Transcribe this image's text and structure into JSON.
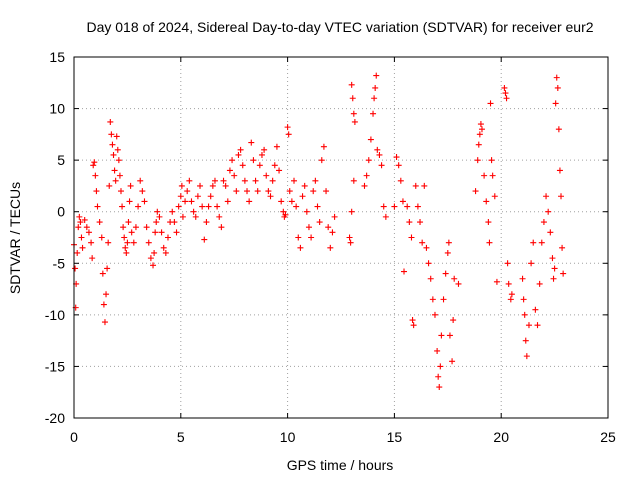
{
  "chart_data": {
    "type": "scatter",
    "title": "Day 018 of 2024, Sidereal Day-to-day VTEC variation (SDTVAR) for receiver eur2",
    "xlabel": "GPS time / hours",
    "ylabel": "SDTVAR / TECUs",
    "xlim": [
      0,
      25
    ],
    "ylim": [
      -20,
      15
    ],
    "xticks": [
      0,
      5,
      10,
      15,
      20,
      25
    ],
    "yticks": [
      -20,
      -15,
      -10,
      -5,
      0,
      5,
      10,
      15
    ],
    "xtick_labels": [
      "0",
      "5",
      "10",
      "15",
      "20",
      "25"
    ],
    "ytick_labels": [
      "-20",
      "-15",
      "-10",
      "-5",
      "0",
      "5",
      "10",
      "15"
    ],
    "grid": true,
    "marker": "+",
    "color": "#ff0000",
    "series": [
      {
        "name": "SDTVAR",
        "points": [
          [
            0.0,
            -3.2
          ],
          [
            0.05,
            -5.5
          ],
          [
            0.08,
            -9.3
          ],
          [
            0.1,
            -7.0
          ],
          [
            0.15,
            -4.0
          ],
          [
            0.2,
            -1.5
          ],
          [
            0.25,
            -0.5
          ],
          [
            0.3,
            -1.0
          ],
          [
            0.35,
            -2.5
          ],
          [
            0.4,
            -3.5
          ],
          [
            0.5,
            -0.8
          ],
          [
            0.6,
            -1.5
          ],
          [
            0.7,
            -2.0
          ],
          [
            0.8,
            -3.0
          ],
          [
            0.85,
            -4.5
          ],
          [
            0.9,
            4.5
          ],
          [
            0.95,
            4.8
          ],
          [
            1.0,
            3.5
          ],
          [
            1.05,
            2.0
          ],
          [
            1.1,
            0.5
          ],
          [
            1.2,
            -1.0
          ],
          [
            1.3,
            -2.5
          ],
          [
            1.35,
            -6.0
          ],
          [
            1.4,
            -9.0
          ],
          [
            1.45,
            -10.7
          ],
          [
            1.5,
            -8.0
          ],
          [
            1.55,
            -5.5
          ],
          [
            1.6,
            -3.0
          ],
          [
            1.65,
            2.5
          ],
          [
            1.7,
            8.7
          ],
          [
            1.75,
            7.5
          ],
          [
            1.8,
            6.5
          ],
          [
            1.85,
            5.5
          ],
          [
            1.9,
            4.0
          ],
          [
            1.95,
            3.0
          ],
          [
            2.0,
            7.3
          ],
          [
            2.05,
            6.0
          ],
          [
            2.1,
            5.0
          ],
          [
            2.15,
            3.5
          ],
          [
            2.2,
            2.0
          ],
          [
            2.25,
            0.5
          ],
          [
            2.3,
            -1.5
          ],
          [
            2.35,
            -2.5
          ],
          [
            2.4,
            -3.5
          ],
          [
            2.45,
            -4.0
          ],
          [
            2.5,
            -3.0
          ],
          [
            2.55,
            -1.0
          ],
          [
            2.6,
            1.0
          ],
          [
            2.65,
            2.5
          ],
          [
            2.7,
            -2.0
          ],
          [
            2.8,
            -3.0
          ],
          [
            2.9,
            -1.5
          ],
          [
            3.0,
            0.5
          ],
          [
            3.1,
            3.0
          ],
          [
            3.2,
            2.0
          ],
          [
            3.3,
            1.0
          ],
          [
            3.4,
            -1.5
          ],
          [
            3.5,
            -3.0
          ],
          [
            3.6,
            -4.5
          ],
          [
            3.7,
            -5.2
          ],
          [
            3.75,
            -4.0
          ],
          [
            3.8,
            -2.0
          ],
          [
            3.85,
            -1.0
          ],
          [
            3.9,
            0.0
          ],
          [
            4.0,
            -0.5
          ],
          [
            4.1,
            -2.0
          ],
          [
            4.2,
            -3.5
          ],
          [
            4.3,
            -4.0
          ],
          [
            4.4,
            -2.5
          ],
          [
            4.5,
            -1.0
          ],
          [
            4.6,
            0.0
          ],
          [
            4.7,
            -1.0
          ],
          [
            4.8,
            -2.0
          ],
          [
            4.9,
            0.5
          ],
          [
            5.0,
            1.5
          ],
          [
            5.05,
            2.5
          ],
          [
            5.1,
            -0.5
          ],
          [
            5.2,
            1.0
          ],
          [
            5.3,
            2.0
          ],
          [
            5.4,
            3.0
          ],
          [
            5.5,
            1.0
          ],
          [
            5.6,
            0.0
          ],
          [
            5.7,
            -0.5
          ],
          [
            5.8,
            1.5
          ],
          [
            5.9,
            2.5
          ],
          [
            6.0,
            0.5
          ],
          [
            6.1,
            -2.7
          ],
          [
            6.2,
            -1.0
          ],
          [
            6.3,
            0.5
          ],
          [
            6.4,
            1.5
          ],
          [
            6.5,
            2.5
          ],
          [
            6.6,
            3.0
          ],
          [
            6.7,
            0.5
          ],
          [
            6.8,
            -0.5
          ],
          [
            6.9,
            -1.5
          ],
          [
            7.0,
            3.0
          ],
          [
            7.1,
            2.5
          ],
          [
            7.2,
            1.0
          ],
          [
            7.3,
            4.0
          ],
          [
            7.4,
            5.0
          ],
          [
            7.5,
            3.5
          ],
          [
            7.6,
            2.0
          ],
          [
            7.7,
            5.5
          ],
          [
            7.8,
            6.0
          ],
          [
            7.9,
            4.5
          ],
          [
            8.0,
            3.0
          ],
          [
            8.1,
            2.0
          ],
          [
            8.2,
            1.0
          ],
          [
            8.3,
            6.7
          ],
          [
            8.4,
            5.0
          ],
          [
            8.5,
            3.0
          ],
          [
            8.6,
            2.0
          ],
          [
            8.7,
            4.5
          ],
          [
            8.8,
            5.5
          ],
          [
            8.9,
            6.0
          ],
          [
            9.0,
            3.5
          ],
          [
            9.1,
            2.0
          ],
          [
            9.2,
            1.5
          ],
          [
            9.3,
            3.0
          ],
          [
            9.4,
            4.5
          ],
          [
            9.5,
            6.3
          ],
          [
            9.6,
            4.0
          ],
          [
            9.7,
            1.0
          ],
          [
            9.8,
            0.0
          ],
          [
            9.85,
            -0.5
          ],
          [
            9.9,
            -0.3
          ],
          [
            10.0,
            8.2
          ],
          [
            10.05,
            7.5
          ],
          [
            10.1,
            2.0
          ],
          [
            10.2,
            1.0
          ],
          [
            10.3,
            3.0
          ],
          [
            10.4,
            0.5
          ],
          [
            10.5,
            -2.5
          ],
          [
            10.6,
            -3.5
          ],
          [
            10.7,
            1.5
          ],
          [
            10.8,
            2.5
          ],
          [
            10.9,
            0.0
          ],
          [
            11.0,
            -1.5
          ],
          [
            11.1,
            -2.5
          ],
          [
            11.2,
            2.0
          ],
          [
            11.3,
            3.0
          ],
          [
            11.4,
            0.5
          ],
          [
            11.5,
            -1.0
          ],
          [
            11.6,
            5.0
          ],
          [
            11.7,
            6.3
          ],
          [
            11.8,
            2.0
          ],
          [
            11.9,
            -1.5
          ],
          [
            12.0,
            -3.5
          ],
          [
            12.1,
            -2.0
          ],
          [
            12.2,
            -0.5
          ],
          [
            12.9,
            -2.5
          ],
          [
            12.95,
            -3.0
          ],
          [
            13.0,
            0.0
          ],
          [
            13.1,
            3.0
          ],
          [
            13.0,
            12.3
          ],
          [
            13.05,
            11.0
          ],
          [
            13.1,
            9.5
          ],
          [
            13.15,
            8.7
          ],
          [
            13.6,
            2.5
          ],
          [
            13.7,
            3.5
          ],
          [
            13.8,
            5.0
          ],
          [
            13.9,
            7.0
          ],
          [
            14.0,
            9.5
          ],
          [
            14.05,
            11.0
          ],
          [
            14.1,
            12.0
          ],
          [
            14.15,
            13.2
          ],
          [
            14.2,
            6.0
          ],
          [
            14.3,
            5.5
          ],
          [
            14.4,
            4.5
          ],
          [
            14.5,
            0.5
          ],
          [
            14.6,
            -0.5
          ],
          [
            15.0,
            0.5
          ],
          [
            15.1,
            5.3
          ],
          [
            15.2,
            4.5
          ],
          [
            15.3,
            3.0
          ],
          [
            15.4,
            1.0
          ],
          [
            15.45,
            -5.8
          ],
          [
            15.6,
            0.5
          ],
          [
            15.7,
            -1.0
          ],
          [
            15.8,
            -2.5
          ],
          [
            15.85,
            -10.5
          ],
          [
            15.9,
            -11.0
          ],
          [
            16.0,
            2.5
          ],
          [
            16.1,
            0.5
          ],
          [
            16.2,
            -1.0
          ],
          [
            16.3,
            -3.0
          ],
          [
            16.4,
            2.5
          ],
          [
            16.5,
            -3.5
          ],
          [
            16.6,
            -5.0
          ],
          [
            16.7,
            -6.5
          ],
          [
            16.8,
            -8.5
          ],
          [
            16.9,
            -10.0
          ],
          [
            17.0,
            -13.5
          ],
          [
            17.05,
            -16.0
          ],
          [
            17.1,
            -17.0
          ],
          [
            17.15,
            -15.0
          ],
          [
            17.2,
            -12.0
          ],
          [
            17.3,
            -8.5
          ],
          [
            17.4,
            -6.0
          ],
          [
            17.5,
            -4.0
          ],
          [
            17.55,
            -3.0
          ],
          [
            17.6,
            -12.0
          ],
          [
            17.7,
            -14.5
          ],
          [
            17.75,
            -10.5
          ],
          [
            17.8,
            -6.5
          ],
          [
            18.0,
            -7.0
          ],
          [
            18.8,
            2.0
          ],
          [
            18.9,
            5.0
          ],
          [
            18.95,
            6.5
          ],
          [
            19.0,
            7.5
          ],
          [
            19.05,
            8.5
          ],
          [
            19.1,
            8.0
          ],
          [
            19.2,
            3.5
          ],
          [
            19.3,
            1.0
          ],
          [
            19.4,
            -1.0
          ],
          [
            19.45,
            -3.0
          ],
          [
            19.5,
            10.5
          ],
          [
            19.55,
            5.0
          ],
          [
            19.6,
            3.5
          ],
          [
            19.7,
            1.5
          ],
          [
            19.8,
            -6.8
          ],
          [
            20.15,
            12.0
          ],
          [
            20.2,
            11.5
          ],
          [
            20.25,
            11.0
          ],
          [
            20.3,
            -5.0
          ],
          [
            20.35,
            -7.0
          ],
          [
            20.45,
            -8.5
          ],
          [
            20.5,
            -8.0
          ],
          [
            21.0,
            -6.5
          ],
          [
            21.05,
            -8.5
          ],
          [
            21.1,
            -10.0
          ],
          [
            21.15,
            -12.5
          ],
          [
            21.2,
            -14.0
          ],
          [
            21.3,
            -11.0
          ],
          [
            21.4,
            -5.0
          ],
          [
            21.5,
            -3.0
          ],
          [
            21.6,
            -9.5
          ],
          [
            21.7,
            -11.0
          ],
          [
            21.8,
            -7.0
          ],
          [
            21.9,
            -3.0
          ],
          [
            22.0,
            -1.0
          ],
          [
            22.1,
            1.5
          ],
          [
            22.2,
            0.0
          ],
          [
            22.3,
            -2.0
          ],
          [
            22.4,
            -4.5
          ],
          [
            22.45,
            -6.5
          ],
          [
            22.5,
            -5.5
          ],
          [
            22.55,
            10.5
          ],
          [
            22.6,
            13.0
          ],
          [
            22.65,
            12.0
          ],
          [
            22.7,
            8.0
          ],
          [
            22.75,
            4.0
          ],
          [
            22.8,
            1.5
          ],
          [
            22.85,
            -3.5
          ],
          [
            22.9,
            -6.0
          ]
        ]
      }
    ]
  }
}
